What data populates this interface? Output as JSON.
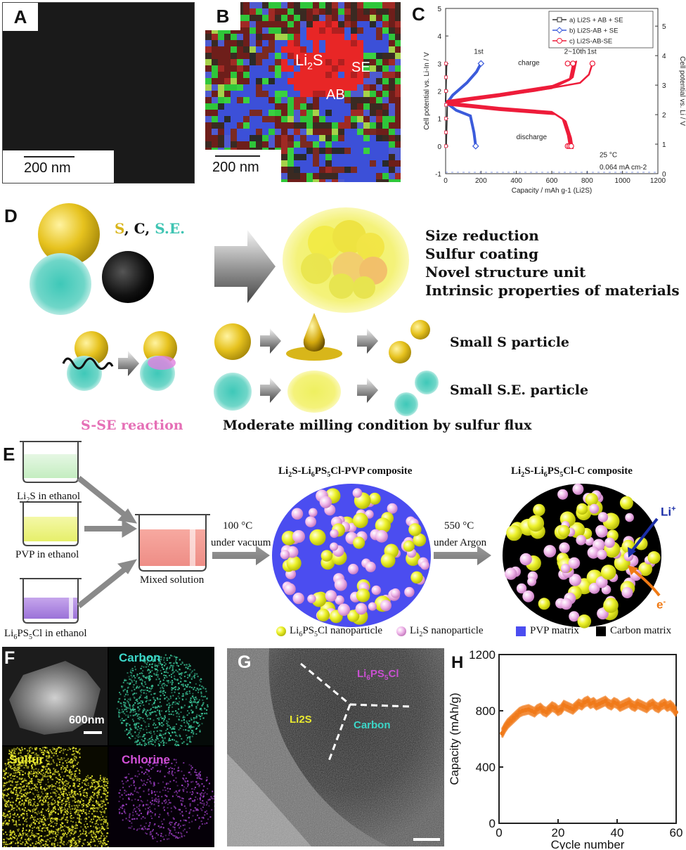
{
  "panelA": {
    "letter": "A",
    "scale_bar": "200 nm"
  },
  "panelB": {
    "letter": "B",
    "scale_bar": "200 nm",
    "labels": {
      "li2s": "Li2S",
      "se": "SE",
      "ab": "AB"
    }
  },
  "panelC": {
    "letter": "C",
    "legend": [
      "a) Li2S + AB + SE",
      "b) Li2S-AB + SE",
      "c) Li2S-AB-SE"
    ],
    "annotations": {
      "first_b": "1st",
      "charge": "charge",
      "range": "2~10th",
      "first_c": "1st",
      "discharge": "discharge",
      "temp": "25 °C",
      "rate": "0.064 mA cm-2"
    },
    "chart_data": {
      "type": "line",
      "xlabel": "Capacity / mAh g-1 (Li2S)",
      "ylabel": "Cell potential vs. Li-In / V",
      "ylabel_right": "Cell potential vs. Li / V",
      "xlim": [
        0,
        1200
      ],
      "ylim": [
        -1,
        5
      ],
      "ylim_right": [
        0,
        5.6
      ],
      "x_ticks": [
        "0",
        "200",
        "400",
        "600",
        "800",
        "1000",
        "1200"
      ],
      "y_ticks": [
        "-1",
        "0",
        "1",
        "2",
        "3",
        "4",
        "5"
      ],
      "y_ticks_right": [
        "0",
        "1",
        "2",
        "3",
        "4",
        "5"
      ],
      "series": [
        {
          "name": "a) Li2S + AB + SE",
          "color": "#333333",
          "charge": [
            [
              0,
              1.6
            ],
            [
              5,
              2.9
            ],
            [
              10,
              3.0
            ]
          ],
          "discharge": [
            [
              10,
              1.6
            ],
            [
              5,
              0.5
            ],
            [
              3,
              0.0
            ]
          ]
        },
        {
          "name": "b) Li2S-AB + SE",
          "color": "#3b5bdb",
          "charge": [
            [
              0,
              1.5
            ],
            [
              40,
              1.85
            ],
            [
              120,
              2.3
            ],
            [
              175,
              2.7
            ],
            [
              200,
              3.0
            ]
          ],
          "discharge": [
            [
              0,
              1.6
            ],
            [
              60,
              1.3
            ],
            [
              140,
              1.1
            ],
            [
              160,
              0.5
            ],
            [
              170,
              0.0
            ]
          ]
        },
        {
          "name": "c) Li2S-AB-SE",
          "color": "#ee1c3a",
          "charge_1st": [
            [
              0,
              1.5
            ],
            [
              200,
              1.75
            ],
            [
              500,
              2.0
            ],
            [
              760,
              2.3
            ],
            [
              810,
              2.6
            ],
            [
              830,
              3.0
            ]
          ],
          "charge_2_10": [
            [
              0,
              1.55
            ],
            [
              300,
              1.8
            ],
            [
              600,
              2.1
            ],
            [
              700,
              2.4
            ],
            [
              720,
              3.0
            ]
          ],
          "discharge": [
            [
              0,
              1.6
            ],
            [
              300,
              1.4
            ],
            [
              600,
              1.25
            ],
            [
              660,
              1.0
            ],
            [
              690,
              0.4
            ],
            [
              700,
              0.0
            ]
          ]
        }
      ]
    }
  },
  "panelD": {
    "letter": "D",
    "legend": {
      "s": "S",
      "comma1": ", ",
      "c": "C",
      "comma2": ", ",
      "se": "S.E."
    },
    "strategies": [
      "Size reduction",
      "Sulfur coating",
      "Novel structure unit",
      "Intrinsic properties of materials"
    ],
    "small_s": "Small S particle",
    "small_se": "Small S.E. particle",
    "sse_reaction": "S-SE reaction",
    "moderate": "Moderate milling condition by sulfur flux"
  },
  "panelE": {
    "letter": "E",
    "beakers": [
      "Li2S in ethanol",
      "PVP in ethanol",
      "Li6PS5Cl in ethanol"
    ],
    "mixed": "Mixed solution",
    "step1_temp": "100 °C",
    "step1_cond": "under vacuum",
    "step2_temp": "550 °C",
    "step2_cond": "under Argon",
    "title_pvp": "Li2S-Li6PS5Cl-PVP composite",
    "title_c": "Li2S-Li6PS5Cl-C composite",
    "li_plus": "Li+",
    "e_minus": "e-",
    "legend": [
      "Li6PS5Cl nanoparticle",
      "Li2S nanoparticle",
      "PVP matrix",
      "Carbon matrix"
    ]
  },
  "panelF": {
    "letter": "F",
    "scale_bar": "600nm",
    "maps": [
      "Carbon",
      "Sulfur",
      "Chlorine"
    ]
  },
  "panelG": {
    "letter": "G",
    "labels": {
      "li6": "Li6PS5Cl",
      "li2s": "Li2S",
      "carbon": "Carbon"
    }
  },
  "panelH": {
    "letter": "H",
    "chart_data": {
      "type": "scatter",
      "xlabel": "Cycle number",
      "ylabel": "Capacity (mAh/g)",
      "xlim": [
        0,
        60
      ],
      "ylim": [
        0,
        1200
      ],
      "x_ticks": [
        "0",
        "20",
        "40",
        "60"
      ],
      "y_ticks": [
        "0",
        "400",
        "800",
        "1200"
      ],
      "color": "#f07a1a",
      "x": [
        1,
        2,
        3,
        4,
        5,
        6,
        7,
        8,
        9,
        10,
        11,
        12,
        13,
        14,
        15,
        16,
        17,
        18,
        19,
        20,
        21,
        22,
        23,
        24,
        25,
        26,
        27,
        28,
        29,
        30,
        31,
        32,
        33,
        34,
        35,
        36,
        37,
        38,
        39,
        40,
        41,
        42,
        43,
        44,
        45,
        46,
        47,
        48,
        49,
        50,
        51,
        52,
        53,
        54,
        55,
        56,
        57,
        58,
        59,
        60
      ],
      "y": [
        640,
        680,
        710,
        730,
        750,
        770,
        790,
        800,
        805,
        810,
        800,
        790,
        810,
        820,
        800,
        790,
        810,
        830,
        820,
        800,
        810,
        840,
        830,
        820,
        810,
        830,
        850,
        840,
        860,
        870,
        850,
        860,
        840,
        850,
        860,
        870,
        850,
        840,
        860,
        850,
        830,
        840,
        850,
        860,
        840,
        830,
        850,
        840,
        830,
        820,
        840,
        850,
        830,
        820,
        840,
        850,
        830,
        840,
        820,
        790
      ]
    }
  }
}
